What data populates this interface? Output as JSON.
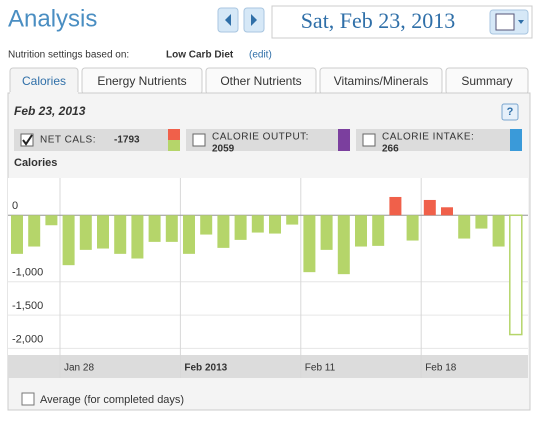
{
  "header": {
    "title": "Analysis",
    "date": "Sat, Feb 23, 2013"
  },
  "settings": {
    "label": "Nutrition settings based on:",
    "diet": "Low Carb Diet",
    "edit": "(edit)"
  },
  "tabs": [
    "Calories",
    "Energy Nutrients",
    "Other Nutrients",
    "Vitamins/Minerals",
    "Summary"
  ],
  "panel": {
    "date": "Feb 23, 2013",
    "help": "?"
  },
  "legend": [
    {
      "label": "NET CALS:",
      "value": -1793,
      "checked": true
    },
    {
      "label": "CALORIE OUTPUT:",
      "value": 2059,
      "checked": false,
      "color": "#7b3f9e"
    },
    {
      "label": "CALORIE INTAKE:",
      "value": 266,
      "checked": false,
      "color": "#3a9ad9"
    }
  ],
  "chart_data": {
    "type": "bar",
    "y_label": "Calories",
    "categories": [
      null,
      null,
      null,
      "Jan 28",
      null,
      null,
      null,
      null,
      null,
      null,
      "Feb 2013",
      null,
      null,
      null,
      null,
      null,
      null,
      "Feb 11",
      null,
      null,
      null,
      null,
      null,
      null,
      "Feb 18",
      null,
      null,
      null,
      null,
      null
    ],
    "values": [
      -580,
      -470,
      -150,
      -750,
      -520,
      -500,
      -580,
      -650,
      -400,
      -400,
      -580,
      -290,
      -490,
      -370,
      -260,
      -275,
      -140,
      -855,
      -520,
      -885,
      -470,
      -460,
      275,
      -380,
      230,
      120,
      -350,
      -200,
      -470,
      -1793
    ],
    "color": "#b5d56a",
    "positive_color": "#f0604a",
    "open_bar_index": 29,
    "ylim": [
      -2100,
      560
    ],
    "yticks": [
      0,
      {
        "value": -1000,
        "label": "-1,000"
      },
      {
        "value": -1500,
        "label": "-1,500"
      },
      {
        "value": -2000,
        "label": "-2,000"
      }
    ],
    "grid": true
  },
  "footer": {
    "average": "Average (for completed days)"
  }
}
